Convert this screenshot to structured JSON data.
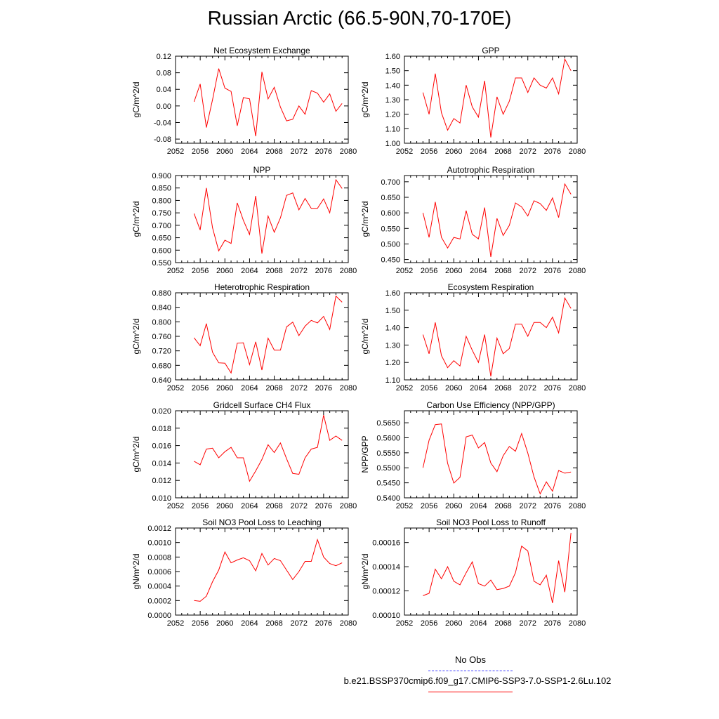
{
  "title": "Russian Arctic (66.5-90N,70-170E)",
  "legend": {
    "obs_label": "No Obs",
    "obs_color": "#3a3aff",
    "run_label": "b.e21.BSSP370cmip6.f09_g17.CMIP6-SSP3-7.0-SSP1-2.6Lu.102",
    "run_color": "#ff0000"
  },
  "chart_data": [
    {
      "type": "line",
      "title": "Net Ecosystem Exchange",
      "ylabel": "gC/m^2/d",
      "xlim": [
        2052,
        2080
      ],
      "xticks": [
        "2052",
        "2056",
        "2060",
        "2064",
        "2068",
        "2072",
        "2076",
        "2080"
      ],
      "ylim": [
        -0.09,
        0.12
      ],
      "yticks": [
        "0.12",
        "0.08",
        "0.04",
        "0.00",
        "-0.04",
        "-0.08"
      ],
      "yticks_values": [
        0.12,
        0.08,
        0.04,
        0.0,
        -0.04,
        -0.08
      ],
      "x": [
        2055,
        2056,
        2057,
        2058,
        2059,
        2060,
        2061,
        2062,
        2063,
        2064,
        2065,
        2066,
        2067,
        2068,
        2069,
        2070,
        2071,
        2072,
        2073,
        2074,
        2075,
        2076,
        2077,
        2078,
        2079
      ],
      "series": [
        {
          "values": [
            0.01,
            0.053,
            -0.052,
            0.015,
            0.09,
            0.043,
            0.035,
            -0.048,
            0.02,
            0.017,
            -0.073,
            0.082,
            0.017,
            0.045,
            -0.003,
            -0.036,
            -0.032,
            0.0,
            -0.02,
            0.037,
            0.031,
            0.009,
            0.029,
            -0.013,
            0.006
          ]
        }
      ]
    },
    {
      "type": "line",
      "title": "GPP",
      "ylabel": "gC/m^2/d",
      "xlim": [
        2052,
        2080
      ],
      "xticks": [
        "2052",
        "2056",
        "2060",
        "2064",
        "2068",
        "2072",
        "2076",
        "2080"
      ],
      "ylim": [
        1.0,
        1.6
      ],
      "yticks": [
        "1.60",
        "1.50",
        "1.40",
        "1.30",
        "1.20",
        "1.10",
        "1.00"
      ],
      "yticks_values": [
        1.6,
        1.5,
        1.4,
        1.3,
        1.2,
        1.1,
        1.0
      ],
      "x": [
        2055,
        2056,
        2057,
        2058,
        2059,
        2060,
        2061,
        2062,
        2063,
        2064,
        2065,
        2066,
        2067,
        2068,
        2069,
        2070,
        2071,
        2072,
        2073,
        2074,
        2075,
        2076,
        2077,
        2078,
        2079
      ],
      "series": [
        {
          "values": [
            1.35,
            1.2,
            1.48,
            1.21,
            1.09,
            1.17,
            1.14,
            1.4,
            1.25,
            1.18,
            1.43,
            1.04,
            1.32,
            1.2,
            1.29,
            1.45,
            1.45,
            1.35,
            1.45,
            1.4,
            1.38,
            1.45,
            1.34,
            1.58,
            1.5
          ]
        }
      ]
    },
    {
      "type": "line",
      "title": "NPP",
      "ylabel": "gC/m^2/d",
      "xlim": [
        2052,
        2080
      ],
      "xticks": [
        "2052",
        "2056",
        "2060",
        "2064",
        "2068",
        "2072",
        "2076",
        "2080"
      ],
      "ylim": [
        0.55,
        0.9
      ],
      "yticks": [
        "0.900",
        "0.850",
        "0.800",
        "0.750",
        "0.700",
        "0.650",
        "0.600",
        "0.550"
      ],
      "yticks_values": [
        0.9,
        0.85,
        0.8,
        0.75,
        0.7,
        0.65,
        0.6,
        0.55
      ],
      "x": [
        2055,
        2056,
        2057,
        2058,
        2059,
        2060,
        2061,
        2062,
        2063,
        2064,
        2065,
        2066,
        2067,
        2068,
        2069,
        2070,
        2071,
        2072,
        2073,
        2074,
        2075,
        2076,
        2077,
        2078,
        2079
      ],
      "series": [
        {
          "values": [
            0.747,
            0.681,
            0.85,
            0.69,
            0.597,
            0.64,
            0.627,
            0.79,
            0.72,
            0.663,
            0.818,
            0.586,
            0.737,
            0.672,
            0.73,
            0.82,
            0.83,
            0.762,
            0.808,
            0.768,
            0.768,
            0.806,
            0.75,
            0.883,
            0.848
          ]
        }
      ]
    },
    {
      "type": "line",
      "title": "Autotrophic Respiration",
      "ylabel": "gC/m^2/d",
      "xlim": [
        2052,
        2080
      ],
      "xticks": [
        "2052",
        "2056",
        "2060",
        "2064",
        "2068",
        "2072",
        "2076",
        "2080"
      ],
      "ylim": [
        0.44,
        0.72
      ],
      "yticks": [
        "0.700",
        "0.650",
        "0.600",
        "0.550",
        "0.500",
        "0.450"
      ],
      "yticks_values": [
        0.7,
        0.65,
        0.6,
        0.55,
        0.5,
        0.45
      ],
      "x": [
        2055,
        2056,
        2057,
        2058,
        2059,
        2060,
        2061,
        2062,
        2063,
        2064,
        2065,
        2066,
        2067,
        2068,
        2069,
        2070,
        2071,
        2072,
        2073,
        2074,
        2075,
        2076,
        2077,
        2078,
        2079
      ],
      "series": [
        {
          "values": [
            0.6,
            0.521,
            0.635,
            0.521,
            0.487,
            0.521,
            0.516,
            0.607,
            0.531,
            0.516,
            0.617,
            0.458,
            0.582,
            0.527,
            0.56,
            0.632,
            0.619,
            0.59,
            0.639,
            0.63,
            0.608,
            0.648,
            0.585,
            0.693,
            0.66
          ]
        }
      ]
    },
    {
      "type": "line",
      "title": "Heterotrophic Respiration",
      "ylabel": "gC/m^2/d",
      "xlim": [
        2052,
        2080
      ],
      "xticks": [
        "2052",
        "2056",
        "2060",
        "2064",
        "2068",
        "2072",
        "2076",
        "2080"
      ],
      "ylim": [
        0.64,
        0.88
      ],
      "yticks": [
        "0.880",
        "0.840",
        "0.800",
        "0.760",
        "0.720",
        "0.680",
        "0.640"
      ],
      "yticks_values": [
        0.88,
        0.84,
        0.8,
        0.76,
        0.72,
        0.68,
        0.64
      ],
      "x": [
        2055,
        2056,
        2057,
        2058,
        2059,
        2060,
        2061,
        2062,
        2063,
        2064,
        2065,
        2066,
        2067,
        2068,
        2069,
        2070,
        2071,
        2072,
        2073,
        2074,
        2075,
        2076,
        2077,
        2078,
        2079
      ],
      "series": [
        {
          "values": [
            0.756,
            0.734,
            0.795,
            0.716,
            0.687,
            0.686,
            0.659,
            0.741,
            0.742,
            0.682,
            0.745,
            0.667,
            0.755,
            0.722,
            0.722,
            0.786,
            0.799,
            0.762,
            0.788,
            0.804,
            0.797,
            0.815,
            0.779,
            0.871,
            0.854
          ]
        }
      ]
    },
    {
      "type": "line",
      "title": "Ecosystem Respiration",
      "ylabel": "gC/m^2/d",
      "xlim": [
        2052,
        2080
      ],
      "xticks": [
        "2052",
        "2056",
        "2060",
        "2064",
        "2068",
        "2072",
        "2076",
        "2080"
      ],
      "ylim": [
        1.1,
        1.6
      ],
      "yticks": [
        "1.60",
        "1.50",
        "1.40",
        "1.30",
        "1.20",
        "1.10"
      ],
      "yticks_values": [
        1.6,
        1.5,
        1.4,
        1.3,
        1.2,
        1.1
      ],
      "x": [
        2055,
        2056,
        2057,
        2058,
        2059,
        2060,
        2061,
        2062,
        2063,
        2064,
        2065,
        2066,
        2067,
        2068,
        2069,
        2070,
        2071,
        2072,
        2073,
        2074,
        2075,
        2076,
        2077,
        2078,
        2079
      ],
      "series": [
        {
          "values": [
            1.36,
            1.25,
            1.43,
            1.24,
            1.17,
            1.21,
            1.18,
            1.35,
            1.27,
            1.2,
            1.36,
            1.12,
            1.34,
            1.25,
            1.28,
            1.42,
            1.42,
            1.35,
            1.43,
            1.43,
            1.4,
            1.46,
            1.37,
            1.57,
            1.51
          ]
        }
      ]
    },
    {
      "type": "line",
      "title": "Gridcell Surface CH4 Flux",
      "ylabel": "gC/m^2/d",
      "xlim": [
        2052,
        2080
      ],
      "xticks": [
        "2052",
        "2056",
        "2060",
        "2064",
        "2068",
        "2072",
        "2076",
        "2080"
      ],
      "ylim": [
        0.01,
        0.02
      ],
      "yticks": [
        "0.020",
        "0.018",
        "0.016",
        "0.014",
        "0.012",
        "0.010"
      ],
      "yticks_values": [
        0.02,
        0.018,
        0.016,
        0.014,
        0.012,
        0.01
      ],
      "x": [
        2055,
        2056,
        2057,
        2058,
        2059,
        2060,
        2061,
        2062,
        2063,
        2064,
        2065,
        2066,
        2067,
        2068,
        2069,
        2070,
        2071,
        2072,
        2073,
        2074,
        2075,
        2076,
        2077,
        2078,
        2079
      ],
      "series": [
        {
          "values": [
            0.0142,
            0.0138,
            0.0156,
            0.0157,
            0.0146,
            0.0153,
            0.0158,
            0.0146,
            0.0146,
            0.0119,
            0.0131,
            0.0144,
            0.0161,
            0.0152,
            0.0163,
            0.0145,
            0.0128,
            0.0127,
            0.0146,
            0.0156,
            0.0158,
            0.0195,
            0.0166,
            0.0171,
            0.0166
          ]
        }
      ]
    },
    {
      "type": "line",
      "title": "Carbon Use Efficiency (NPP/GPP)",
      "ylabel": "NPP/GPP",
      "xlim": [
        2052,
        2080
      ],
      "xticks": [
        "2052",
        "2056",
        "2060",
        "2064",
        "2068",
        "2072",
        "2076",
        "2080"
      ],
      "ylim": [
        0.54,
        0.569
      ],
      "yticks": [
        "0.5650",
        "0.5600",
        "0.5550",
        "0.5500",
        "0.5450",
        "0.5400"
      ],
      "yticks_values": [
        0.565,
        0.56,
        0.555,
        0.55,
        0.545,
        0.54
      ],
      "x": [
        2055,
        2056,
        2057,
        2058,
        2059,
        2060,
        2061,
        2062,
        2063,
        2064,
        2065,
        2066,
        2067,
        2068,
        2069,
        2070,
        2071,
        2072,
        2073,
        2074,
        2075,
        2076,
        2077,
        2078,
        2079
      ],
      "series": [
        {
          "values": [
            0.55,
            0.5592,
            0.5644,
            0.5646,
            0.5515,
            0.5449,
            0.5468,
            0.5603,
            0.5609,
            0.5566,
            0.5584,
            0.5516,
            0.5487,
            0.554,
            0.5571,
            0.5555,
            0.5614,
            0.5549,
            0.547,
            0.5413,
            0.5453,
            0.5422,
            0.5491,
            0.5482,
            0.5486
          ]
        }
      ]
    },
    {
      "type": "line",
      "title": "Soil NO3 Pool Loss to Leaching",
      "ylabel": "gN/m^2/d",
      "xlim": [
        2052,
        2080
      ],
      "xticks": [
        "2052",
        "2056",
        "2060",
        "2064",
        "2068",
        "2072",
        "2076",
        "2080"
      ],
      "ylim": [
        0.0,
        0.0012
      ],
      "yticks": [
        "0.0012",
        "0.0010",
        "0.0008",
        "0.0006",
        "0.0004",
        "0.0002",
        "0.0000"
      ],
      "yticks_values": [
        0.0012,
        0.001,
        0.0008,
        0.0006,
        0.0004,
        0.0002,
        0.0
      ],
      "x": [
        2055,
        2056,
        2057,
        2058,
        2059,
        2060,
        2061,
        2062,
        2063,
        2064,
        2065,
        2066,
        2067,
        2068,
        2069,
        2070,
        2071,
        2072,
        2073,
        2074,
        2075,
        2076,
        2077,
        2078,
        2079
      ],
      "series": [
        {
          "values": [
            0.0002,
            0.00019,
            0.00026,
            0.00046,
            0.00062,
            0.00087,
            0.00072,
            0.00076,
            0.00079,
            0.00075,
            0.00061,
            0.00085,
            0.00069,
            0.00078,
            0.00075,
            0.00062,
            0.00049,
            0.0006,
            0.00074,
            0.00074,
            0.00104,
            0.0008,
            0.00071,
            0.00068,
            0.00072
          ]
        }
      ]
    },
    {
      "type": "line",
      "title": "Soil NO3 Pool Loss to Runoff",
      "ylabel": "gN/m^2/d",
      "xlim": [
        2052,
        2080
      ],
      "xticks": [
        "2052",
        "2056",
        "2060",
        "2064",
        "2068",
        "2072",
        "2076",
        "2080"
      ],
      "ylim": [
        0.0001,
        0.000172
      ],
      "yticks": [
        "0.00016",
        "0.00014",
        "0.00012",
        "0.00010"
      ],
      "yticks_values": [
        0.00016,
        0.00014,
        0.00012,
        0.0001
      ],
      "x": [
        2055,
        2056,
        2057,
        2058,
        2059,
        2060,
        2061,
        2062,
        2063,
        2064,
        2065,
        2066,
        2067,
        2068,
        2069,
        2070,
        2071,
        2072,
        2073,
        2074,
        2075,
        2076,
        2077,
        2078,
        2079
      ],
      "series": [
        {
          "values": [
            0.000116,
            0.000118,
            0.000138,
            0.00013,
            0.00014,
            0.000128,
            0.000125,
            0.000135,
            0.000144,
            0.000126,
            0.000124,
            0.000129,
            0.000121,
            0.000122,
            0.000124,
            0.000135,
            0.000157,
            0.000153,
            0.000128,
            0.000125,
            0.000133,
            0.00011,
            0.000145,
            0.000119,
            0.000168
          ]
        }
      ]
    }
  ]
}
